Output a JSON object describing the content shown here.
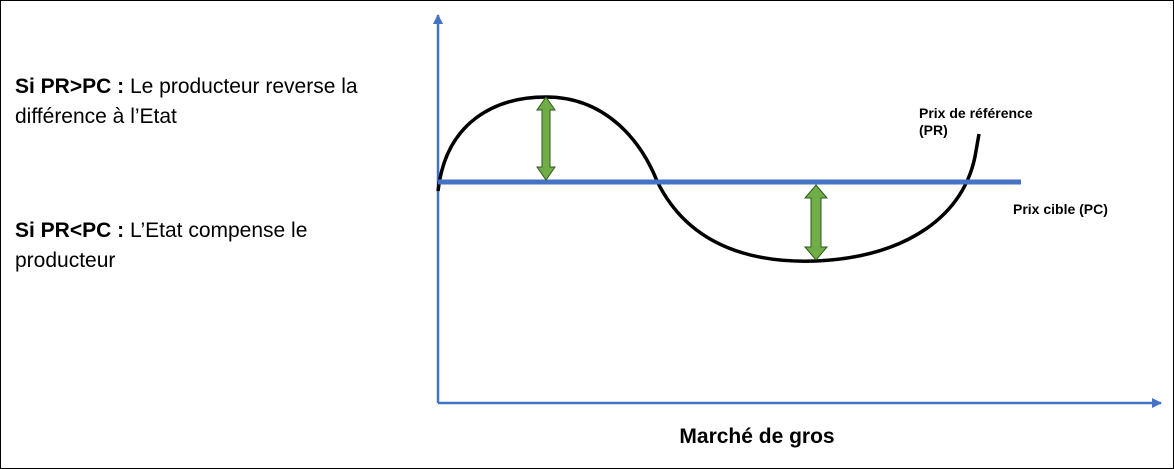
{
  "rules": [
    {
      "condition": "Si PR>PC :",
      "text": " Le producteur reverse la différence à l’Etat"
    },
    {
      "condition": "Si PR<PC :",
      "text": " L’Etat compense le producteur"
    }
  ],
  "labels": {
    "reference_price": [
      "Prix de référence",
      "(PR)"
    ],
    "target_price": "Prix cible (PC)",
    "x_axis": "Marché de gros"
  },
  "colors": {
    "axis": "#4472C4",
    "target_line": "#4472C4",
    "curve": "#000000",
    "arrow_fill": "#70AD47",
    "arrow_stroke": "#2E5A1E"
  }
}
